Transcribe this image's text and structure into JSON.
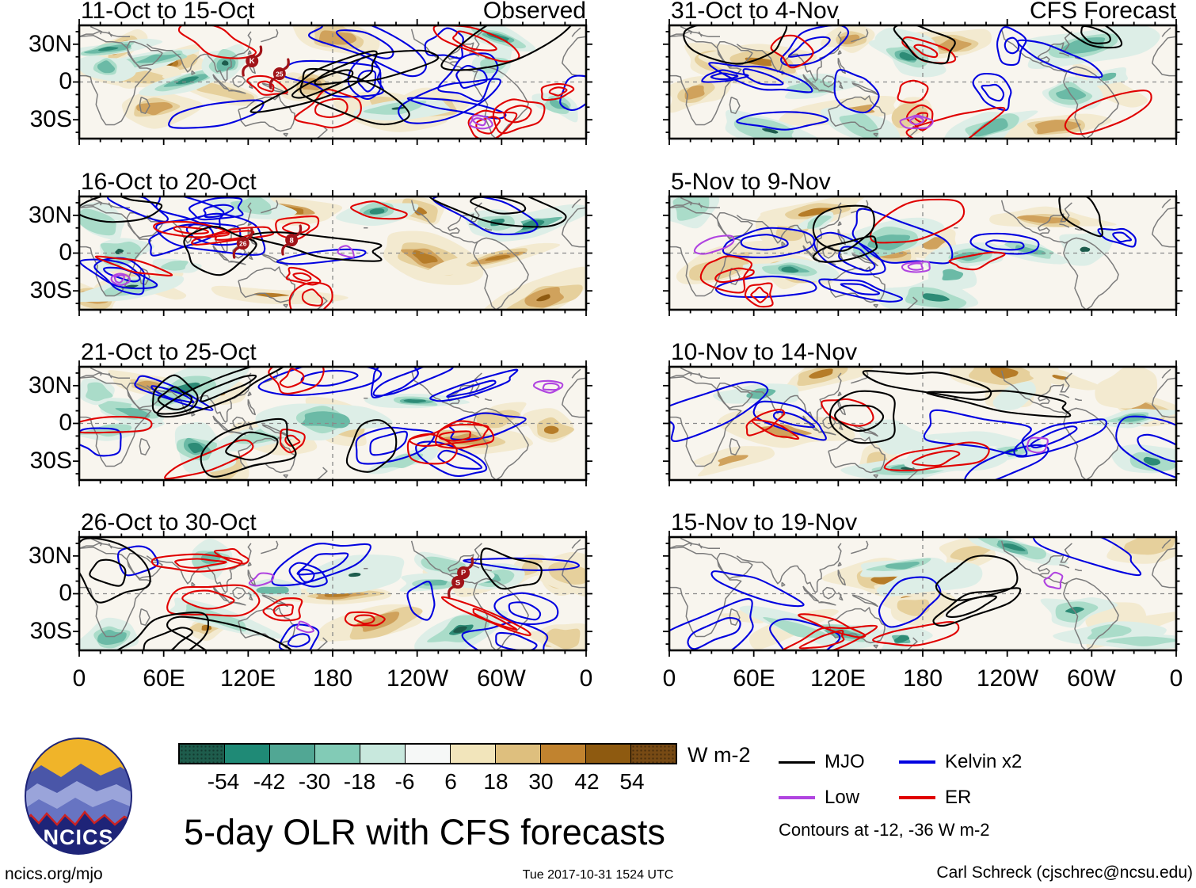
{
  "title": "5-day OLR with CFS forecasts",
  "chart_data": {
    "type": "heatmap",
    "subtype": "global OLR anomaly maps with wave contours",
    "projection": {
      "lon_range": [
        0,
        360
      ],
      "lat_range": [
        -45,
        45
      ]
    },
    "columns": [
      {
        "label": "Observed"
      },
      {
        "label": "CFS Forecast"
      }
    ],
    "xticks": [
      "0",
      "60E",
      "120E",
      "180",
      "120W",
      "60W",
      "0"
    ],
    "yticks": [
      "30N",
      "0",
      "30S"
    ],
    "panels": [
      {
        "title": "11-Oct to 15-Oct",
        "corner_label": "Observed",
        "column": 0,
        "seed": 101,
        "density": 1.0,
        "storms": [
          {
            "label": "K",
            "fx": 0.341,
            "fy": 0.315
          },
          {
            "label": "25",
            "fx": 0.395,
            "fy": 0.427
          }
        ]
      },
      {
        "title": "16-Oct to 20-Oct",
        "column": 0,
        "seed": 102,
        "density": 1.0,
        "storms": [
          {
            "label": "26",
            "fx": 0.323,
            "fy": 0.413
          },
          {
            "label": "8",
            "fx": 0.419,
            "fy": 0.385
          }
        ]
      },
      {
        "title": "21-Oct to 25-Oct",
        "column": 0,
        "seed": 103,
        "density": 0.95,
        "storms": []
      },
      {
        "title": "26-Oct to 30-Oct",
        "column": 0,
        "seed": 104,
        "density": 0.9,
        "storms": [
          {
            "label": "P",
            "fx": 0.758,
            "fy": 0.315
          },
          {
            "label": "S",
            "fx": 0.747,
            "fy": 0.399
          }
        ]
      },
      {
        "title": "31-Oct to 4-Nov",
        "corner_label": "CFS Forecast",
        "column": 1,
        "seed": 105,
        "density": 0.8,
        "storms": []
      },
      {
        "title": "5-Nov to 9-Nov",
        "column": 1,
        "seed": 106,
        "density": 0.7,
        "storms": []
      },
      {
        "title": "10-Nov to 14-Nov",
        "column": 1,
        "seed": 107,
        "density": 0.55,
        "storms": []
      },
      {
        "title": "15-Nov to 19-Nov",
        "column": 1,
        "seed": 108,
        "density": 0.4,
        "storms": []
      }
    ],
    "colorbar": {
      "units": "W m-2",
      "tick_labels": [
        "-54",
        "-42",
        "-30",
        "-18",
        "-6",
        "6",
        "18",
        "30",
        "42",
        "54"
      ],
      "colors": [
        "#1e5c4c",
        "#1f8a76",
        "#51a794",
        "#82cbb6",
        "#c8e8dd",
        "#f6f8f7",
        "#f2e5bb",
        "#debf7e",
        "#c1832f",
        "#8e5a10",
        "#774a14"
      ]
    },
    "legend": [
      {
        "label": "MJO",
        "color": "#000000"
      },
      {
        "label": "Kelvin x2",
        "color": "#0000e0"
      },
      {
        "label": "Low",
        "color": "#b044e0"
      },
      {
        "label": "ER",
        "color": "#e00000"
      }
    ],
    "contour_note": "Contours at -12, -36 W m-2",
    "fill_palette": {
      "negative": [
        "#ddeee7",
        "#aadcc9",
        "#6bbaa6",
        "#2d8b76",
        "#1d5c4d"
      ],
      "positive": [
        "#f3ead0",
        "#e6d09c",
        "#d0a25c",
        "#b67c28",
        "#8e5a10"
      ]
    }
  },
  "logo": {
    "text": "NCICS"
  },
  "footer": {
    "left": "ncics.org/mjo",
    "center": "Tue 2017-10-31 1524 UTC",
    "right": "Carl Schreck (cjschrec@ncsu.edu)"
  }
}
